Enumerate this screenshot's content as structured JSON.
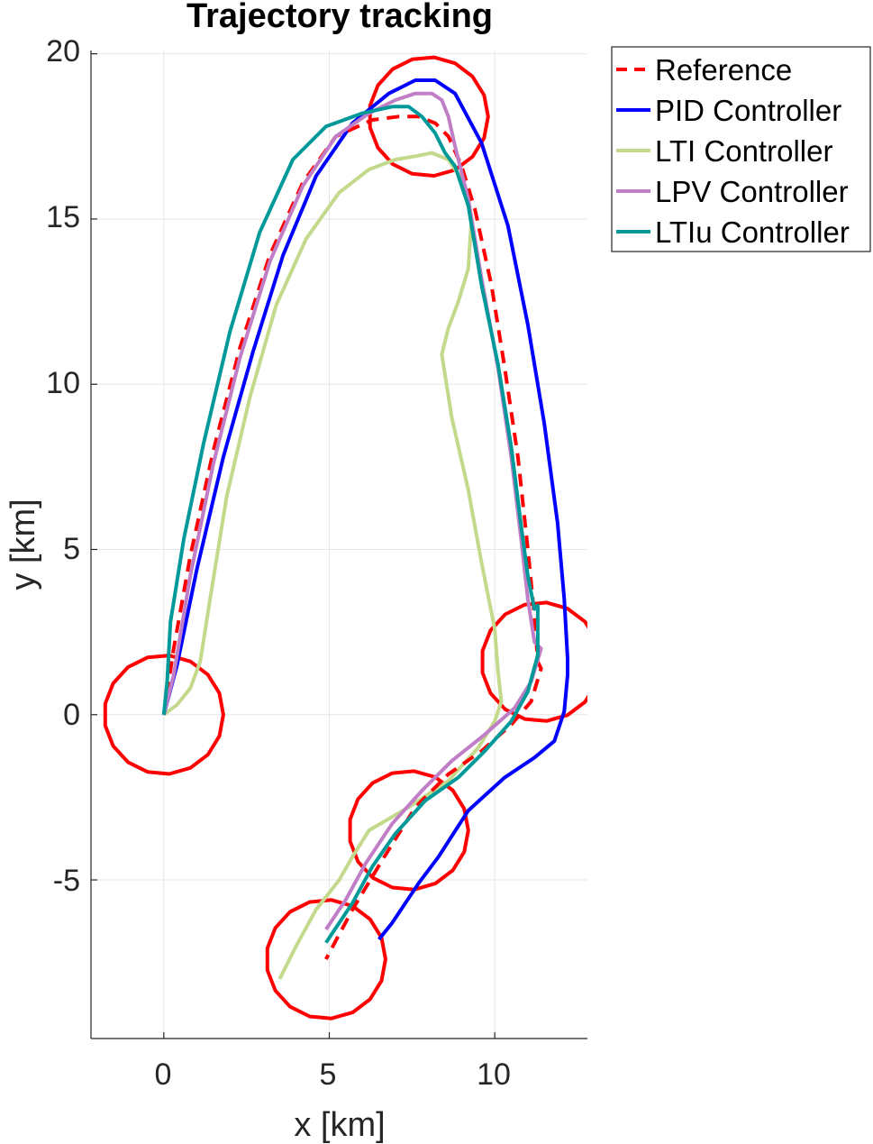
{
  "chart_data": {
    "type": "line",
    "title": "Trajectory tracking",
    "xlabel": "x [km]",
    "ylabel": "y [km]",
    "xlim": [
      -2.2,
      12.8
    ],
    "ylim": [
      -9.8,
      20.1
    ],
    "xticks": [
      0,
      5,
      10
    ],
    "yticks": [
      20,
      15,
      10,
      5,
      0,
      -5
    ],
    "xtick_labels": [
      "0",
      "5",
      "10"
    ],
    "ytick_labels": [
      "20",
      "15",
      "10",
      "5",
      "0",
      "-5"
    ],
    "grid": true,
    "legend_position": "outside-top-right",
    "waypoints": [
      {
        "x": 0.0,
        "y": 0.0,
        "r": 1.8
      },
      {
        "x": 8.0,
        "y": 18.1,
        "r": 1.8
      },
      {
        "x": 11.4,
        "y": 1.6,
        "r": 1.8
      },
      {
        "x": 7.4,
        "y": -3.5,
        "r": 1.8
      },
      {
        "x": 4.9,
        "y": -7.4,
        "r": 1.8
      }
    ],
    "waypoint_color": "#ff0000",
    "series": [
      {
        "name": "Reference",
        "color": "#ff0000",
        "dash": true,
        "x": [
          0.0,
          0.3,
          0.8,
          1.5,
          2.3,
          3.2,
          4.2,
          5.2,
          6.3,
          7.1,
          7.7,
          8.2,
          8.6,
          9.0,
          9.4,
          9.9,
          10.3,
          10.7,
          11.0,
          11.2,
          11.3,
          11.4,
          11.1,
          10.5,
          9.6,
          8.6,
          7.6,
          6.6,
          5.7,
          4.9
        ],
        "y": [
          0.0,
          2.0,
          4.8,
          8.0,
          11.1,
          13.9,
          16.1,
          17.5,
          18.0,
          18.1,
          18.1,
          17.9,
          17.5,
          16.6,
          15.3,
          13.0,
          10.5,
          7.8,
          5.0,
          3.0,
          1.6,
          1.4,
          0.4,
          -0.3,
          -1.1,
          -1.8,
          -2.8,
          -4.4,
          -5.9,
          -7.4
        ]
      },
      {
        "name": "PID Controller",
        "color": "#0000ff",
        "dash": false,
        "x": [
          0.0,
          0.4,
          1.0,
          1.8,
          2.7,
          3.6,
          4.6,
          5.7,
          6.8,
          7.6,
          8.2,
          8.8,
          9.6,
          10.4,
          11.0,
          11.5,
          11.9,
          12.1,
          12.2,
          12.2,
          12.1,
          11.8,
          11.2,
          10.3,
          9.2,
          8.3,
          7.7,
          7.3,
          6.9,
          6.5
        ],
        "y": [
          0.0,
          1.5,
          4.4,
          7.8,
          11.0,
          13.9,
          16.3,
          17.9,
          18.8,
          19.2,
          19.2,
          18.8,
          17.3,
          14.8,
          11.8,
          8.8,
          5.8,
          3.5,
          1.7,
          1.2,
          0.1,
          -0.8,
          -1.3,
          -1.9,
          -2.9,
          -4.3,
          -5.1,
          -5.7,
          -6.3,
          -6.8
        ]
      },
      {
        "name": "LTI Controller",
        "color": "#c3d98c",
        "dash": false,
        "x": [
          0.0,
          0.4,
          0.8,
          1.1,
          1.4,
          1.9,
          2.6,
          3.4,
          4.3,
          5.3,
          6.2,
          7.0,
          7.6,
          8.1,
          8.6,
          9.0,
          9.3,
          9.2,
          8.9,
          8.6,
          8.4,
          8.7,
          9.2,
          9.6,
          10.0,
          10.1,
          10.2,
          10.0,
          9.5,
          8.6,
          7.4,
          6.2,
          5.7,
          5.3,
          4.6,
          4.0,
          3.5
        ],
        "y": [
          0.0,
          0.3,
          0.8,
          1.6,
          3.5,
          6.6,
          9.6,
          12.4,
          14.4,
          15.8,
          16.5,
          16.8,
          16.9,
          17.0,
          16.8,
          16.2,
          15.0,
          13.5,
          12.5,
          11.7,
          10.9,
          9.0,
          6.8,
          4.6,
          2.6,
          1.3,
          0.4,
          -0.2,
          -1.0,
          -2.0,
          -2.8,
          -3.5,
          -4.3,
          -5.0,
          -5.9,
          -7.0,
          -8.0
        ]
      },
      {
        "name": "LPV Controller",
        "color": "#c07ec7",
        "dash": false,
        "x": [
          0.0,
          0.3,
          0.8,
          1.5,
          2.3,
          3.2,
          4.2,
          5.2,
          6.2,
          7.0,
          7.6,
          8.1,
          8.4,
          8.6,
          8.8,
          9.2,
          9.6,
          10.1,
          10.5,
          10.8,
          11.0,
          11.2,
          11.4,
          11.1,
          10.6,
          9.7,
          8.7,
          7.8,
          6.9,
          6.1,
          5.5,
          4.9
        ],
        "y": [
          0.0,
          1.2,
          4.2,
          7.6,
          10.8,
          13.7,
          16.0,
          17.5,
          18.2,
          18.6,
          18.8,
          18.8,
          18.6,
          18.1,
          17.2,
          15.6,
          13.2,
          10.5,
          7.8,
          5.3,
          3.5,
          2.2,
          2.0,
          1.0,
          0.2,
          -0.6,
          -1.4,
          -2.3,
          -3.3,
          -4.5,
          -5.6,
          -6.5
        ]
      },
      {
        "name": "LTIu Controller",
        "color": "#009999",
        "dash": false,
        "x": [
          0.0,
          0.1,
          0.2,
          0.6,
          1.2,
          2.0,
          2.9,
          3.9,
          4.9,
          6.0,
          6.9,
          7.4,
          7.8,
          8.2,
          8.5,
          8.8,
          9.2,
          9.6,
          10.1,
          10.5,
          10.8,
          11.0,
          11.2,
          11.3,
          11.3,
          11.0,
          10.5,
          9.7,
          8.9,
          7.9,
          7.0,
          6.3,
          5.7,
          4.9
        ],
        "y": [
          0.0,
          1.0,
          2.8,
          5.3,
          8.2,
          11.6,
          14.6,
          16.8,
          17.8,
          18.2,
          18.4,
          18.4,
          18.1,
          17.6,
          17.0,
          16.6,
          15.4,
          13.0,
          10.6,
          8.1,
          5.7,
          4.2,
          3.2,
          3.3,
          1.8,
          0.7,
          -0.2,
          -1.1,
          -1.9,
          -2.6,
          -3.6,
          -4.6,
          -5.7,
          -6.9
        ]
      }
    ]
  }
}
